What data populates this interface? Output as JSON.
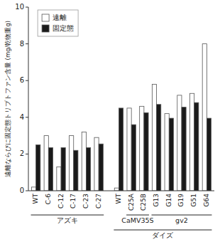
{
  "chart_data": {
    "type": "bar",
    "categories": [
      "WT",
      "C-6",
      "C-12",
      "C-17",
      "C-23",
      "C-27",
      "WT",
      "C25A",
      "C25B",
      "G13",
      "G14",
      "G19",
      "G51",
      "G64"
    ],
    "series": [
      {
        "name": "遠離",
        "color": "white",
        "values": [
          0.2,
          3.0,
          1.3,
          3.0,
          3.2,
          2.9,
          0.15,
          4.5,
          4.6,
          5.8,
          4.2,
          5.2,
          5.3,
          8.0
        ]
      },
      {
        "name": "固定態",
        "color": "#1a1a1a",
        "values": [
          2.5,
          2.35,
          2.35,
          2.2,
          2.35,
          2.55,
          4.5,
          3.6,
          4.25,
          4.7,
          3.95,
          4.55,
          4.8,
          3.95
        ]
      }
    ],
    "ylabel": "遠離ならびに固定態トリプトファン含量 (mg/乾物重g)",
    "ylim": [
      0,
      10
    ],
    "yticks": [
      0,
      2,
      4,
      6,
      8,
      10
    ],
    "legend": "upper left",
    "annotations": [
      "アズキ",
      "CaMV35S",
      "gv2",
      "ダイズ"
    ]
  }
}
